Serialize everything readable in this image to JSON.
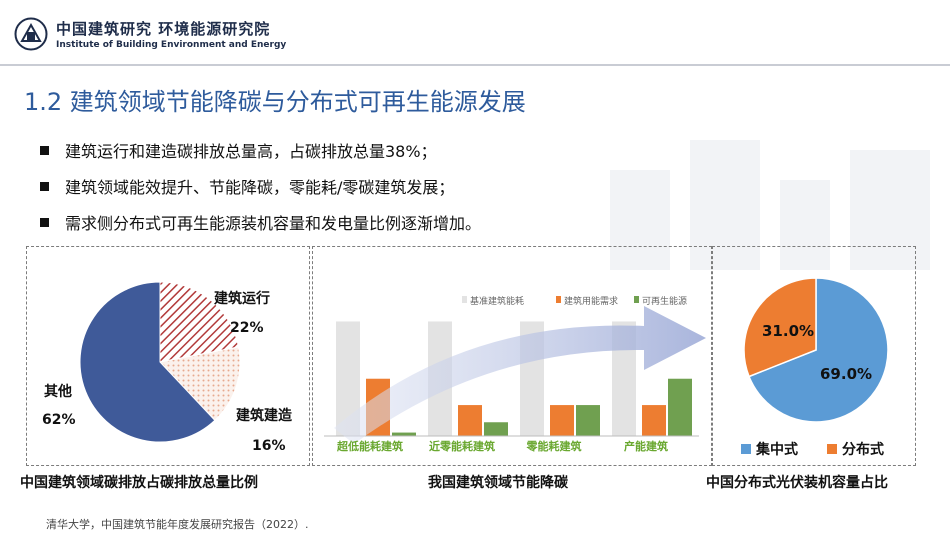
{
  "header": {
    "org_name_cn": "中国建筑研究  环境能源研究院",
    "org_name_en": "Institute of Building Environment and Energy"
  },
  "slide": {
    "title": "1.2 建筑领域节能降碳与分布式可再生能源发展",
    "bullets": [
      "建筑运行和建造碳排放总量高，占碳排放总量38%；",
      "建筑领域能效提升、节能降碳，零能耗/零碳建筑发展；",
      "需求侧分布式可再生能源装机容量和发电量比例逐渐增加。"
    ],
    "source": "清华大学，中国建筑节能年度发展研究报告（2022）."
  },
  "chart_data": [
    {
      "type": "pie",
      "title": "中国建筑领域碳排放占碳排放总量比例",
      "slices": [
        {
          "label": "建筑运行",
          "value": 22,
          "value_label": "22%",
          "color": "#b23a3a"
        },
        {
          "label": "建筑建造",
          "value": 16,
          "value_label": "16%",
          "color": "#e7a98e"
        },
        {
          "label": "其他",
          "value": 62,
          "value_label": "62%",
          "color": "#3f5a99"
        }
      ]
    },
    {
      "type": "bar",
      "title": "我国建筑领域节能降碳",
      "categories": [
        "超低能耗建筑",
        "近零能耗建筑",
        "零能耗建筑",
        "产能建筑"
      ],
      "series": [
        {
          "name": "基准建筑能耗",
          "color": "#e3e3e3",
          "values": [
            100,
            100,
            100,
            100
          ]
        },
        {
          "name": "建筑用能需求",
          "color": "#ed7d31",
          "values": [
            50,
            27,
            27,
            27
          ]
        },
        {
          "name": "可再生能源",
          "color": "#70a050",
          "values": [
            3,
            12,
            27,
            50
          ]
        }
      ],
      "legend": "top",
      "ylim": [
        0,
        110
      ]
    },
    {
      "type": "pie",
      "title": "中国分布式光伏装机容量占比",
      "slices": [
        {
          "label": "集中式",
          "value": 69.0,
          "value_label": "69.0%",
          "color": "#5b9bd5"
        },
        {
          "label": "分布式",
          "value": 31.0,
          "value_label": "31.0%",
          "color": "#ed7d31"
        }
      ],
      "legend": "bottom"
    }
  ]
}
